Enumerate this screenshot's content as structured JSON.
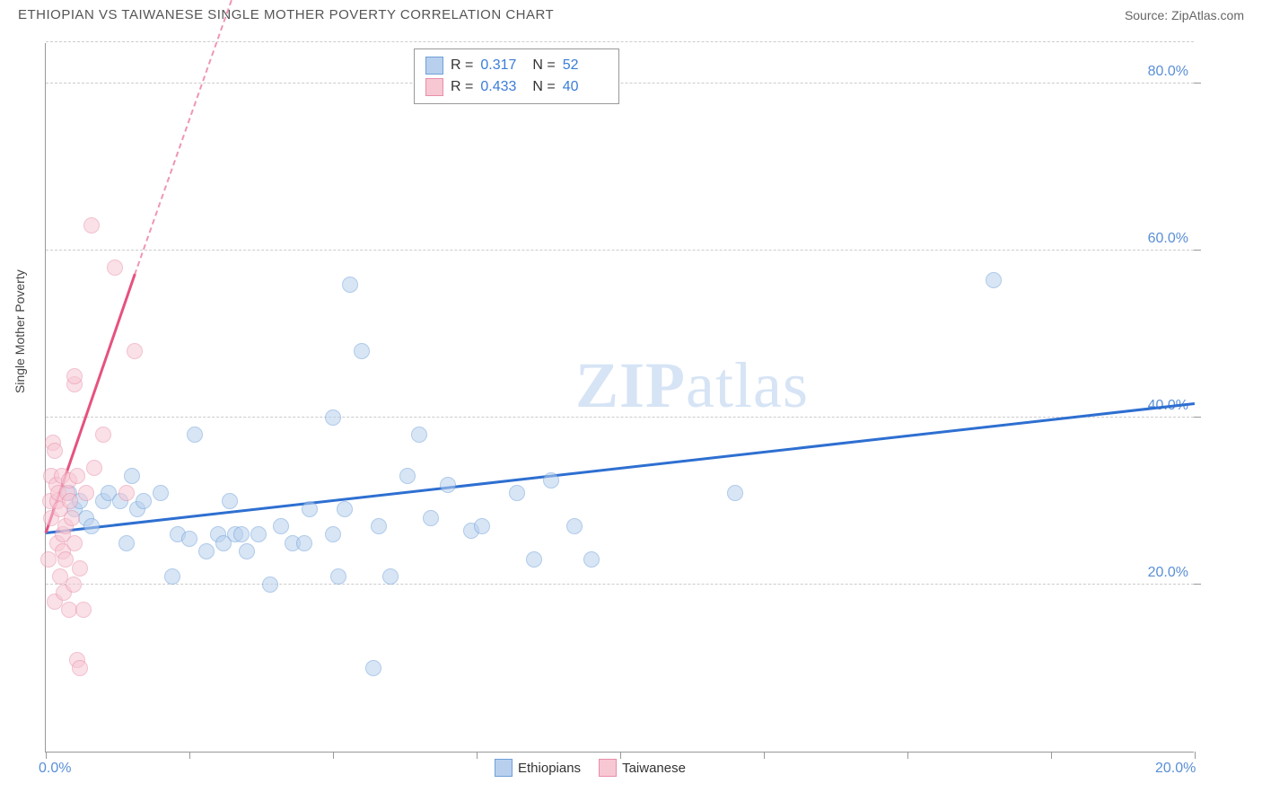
{
  "title": "ETHIOPIAN VS TAIWANESE SINGLE MOTHER POVERTY CORRELATION CHART",
  "source_label": "Source: ZipAtlas.com",
  "y_axis_title": "Single Mother Poverty",
  "watermark": {
    "bold": "ZIP",
    "light": "atlas"
  },
  "chart": {
    "type": "scatter",
    "x_range": [
      0,
      20
    ],
    "y_range": [
      0,
      85
    ],
    "x_ticks": [
      0,
      2.5,
      5,
      7.5,
      10,
      12.5,
      15,
      17.5,
      20
    ],
    "x_labels": [
      {
        "v": 0,
        "t": "0.0%"
      },
      {
        "v": 20,
        "t": "20.0%"
      }
    ],
    "y_gridlines": [
      20,
      40,
      60,
      80,
      85
    ],
    "y_labels": [
      {
        "v": 20,
        "t": "20.0%"
      },
      {
        "v": 40,
        "t": "40.0%"
      },
      {
        "v": 60,
        "t": "60.0%"
      },
      {
        "v": 80,
        "t": "80.0%"
      }
    ],
    "background_color": "#ffffff",
    "grid_color": "#cccccc",
    "axis_color": "#999999",
    "label_color": "#5a8fd6",
    "marker_radius": 9,
    "marker_stroke_width": 1.5,
    "series": [
      {
        "name": "Ethiopians",
        "fill": "#b8d0ee",
        "stroke": "#6fa0d9",
        "fill_opacity": 0.55,
        "trend": {
          "x1": 0,
          "y1": 26,
          "x2": 20,
          "y2": 41.5,
          "color": "#2e6fd1",
          "width": 3,
          "dashed_extension": false
        },
        "points": [
          [
            0.4,
            31
          ],
          [
            0.5,
            29
          ],
          [
            0.6,
            30
          ],
          [
            0.7,
            28
          ],
          [
            0.8,
            27
          ],
          [
            1.0,
            30
          ],
          [
            1.1,
            31
          ],
          [
            1.3,
            30
          ],
          [
            1.4,
            25
          ],
          [
            1.5,
            33
          ],
          [
            1.6,
            29
          ],
          [
            1.7,
            30
          ],
          [
            2.0,
            31
          ],
          [
            2.2,
            21
          ],
          [
            2.3,
            26
          ],
          [
            2.5,
            25.5
          ],
          [
            2.6,
            38
          ],
          [
            2.8,
            24
          ],
          [
            3.0,
            26
          ],
          [
            3.1,
            25
          ],
          [
            3.2,
            30
          ],
          [
            3.3,
            26
          ],
          [
            3.4,
            26
          ],
          [
            3.5,
            24
          ],
          [
            3.7,
            26
          ],
          [
            3.9,
            20
          ],
          [
            4.1,
            27
          ],
          [
            4.3,
            25
          ],
          [
            4.5,
            25
          ],
          [
            4.6,
            29
          ],
          [
            5.0,
            40
          ],
          [
            5.1,
            21
          ],
          [
            5.2,
            29
          ],
          [
            5.3,
            56
          ],
          [
            5.5,
            48
          ],
          [
            5.7,
            10
          ],
          [
            5.8,
            27
          ],
          [
            6.0,
            21
          ],
          [
            6.3,
            33
          ],
          [
            6.5,
            38
          ],
          [
            6.7,
            28
          ],
          [
            7.0,
            32
          ],
          [
            7.4,
            26.5
          ],
          [
            7.6,
            27
          ],
          [
            8.2,
            31
          ],
          [
            8.5,
            23
          ],
          [
            8.8,
            32.5
          ],
          [
            9.2,
            27
          ],
          [
            9.5,
            23
          ],
          [
            12.0,
            31
          ],
          [
            16.5,
            56.5
          ],
          [
            5.0,
            26
          ]
        ]
      },
      {
        "name": "Taiwanese",
        "fill": "#f7c7d4",
        "stroke": "#e88fa8",
        "fill_opacity": 0.55,
        "trend": {
          "x1": 0,
          "y1": 26,
          "x2": 1.55,
          "y2": 57,
          "color": "#e6527e",
          "width": 3,
          "dashed_extension": true,
          "dash_x2": 3.6,
          "dash_y2": 97
        },
        "points": [
          [
            0.05,
            23
          ],
          [
            0.08,
            30
          ],
          [
            0.1,
            33
          ],
          [
            0.1,
            28
          ],
          [
            0.12,
            37
          ],
          [
            0.15,
            18
          ],
          [
            0.15,
            36
          ],
          [
            0.18,
            32
          ],
          [
            0.2,
            25
          ],
          [
            0.2,
            30
          ],
          [
            0.22,
            31
          ],
          [
            0.25,
            21
          ],
          [
            0.25,
            29
          ],
          [
            0.28,
            33
          ],
          [
            0.3,
            24
          ],
          [
            0.3,
            26
          ],
          [
            0.32,
            19
          ],
          [
            0.35,
            23
          ],
          [
            0.35,
            27
          ],
          [
            0.38,
            31
          ],
          [
            0.4,
            17
          ],
          [
            0.4,
            32.5
          ],
          [
            0.42,
            30
          ],
          [
            0.45,
            28
          ],
          [
            0.48,
            20
          ],
          [
            0.5,
            44
          ],
          [
            0.5,
            45
          ],
          [
            0.5,
            25
          ],
          [
            0.55,
            33
          ],
          [
            0.55,
            11
          ],
          [
            0.6,
            10
          ],
          [
            0.6,
            22
          ],
          [
            0.65,
            17
          ],
          [
            0.7,
            31
          ],
          [
            0.8,
            63
          ],
          [
            0.85,
            34
          ],
          [
            1.0,
            38
          ],
          [
            1.2,
            58
          ],
          [
            1.4,
            31
          ],
          [
            1.55,
            48
          ]
        ]
      }
    ],
    "stats_box": {
      "rows": [
        {
          "swatch_fill": "#b8d0ee",
          "swatch_stroke": "#6fa0d9",
          "r": "0.317",
          "n": "52"
        },
        {
          "swatch_fill": "#f7c7d4",
          "swatch_stroke": "#e88fa8",
          "r": "0.433",
          "n": "40"
        }
      ],
      "r_label": "R =",
      "n_label": "N ="
    },
    "bottom_legend": [
      {
        "swatch_fill": "#b8d0ee",
        "swatch_stroke": "#6fa0d9",
        "label": "Ethiopians"
      },
      {
        "swatch_fill": "#f7c7d4",
        "swatch_stroke": "#e88fa8",
        "label": "Taiwanese"
      }
    ]
  }
}
